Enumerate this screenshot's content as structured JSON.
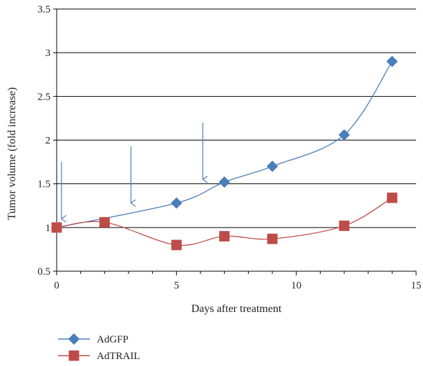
{
  "chart_data": {
    "type": "line",
    "xlabel": "Days after treatment",
    "ylabel": "Tumor volume (fold increase)",
    "xlim": [
      0,
      15
    ],
    "ylim": [
      0.5,
      3.5
    ],
    "x_ticks": [
      0,
      5,
      10,
      15
    ],
    "x_tick_labels": [
      "0",
      "5",
      "10",
      "15"
    ],
    "y_ticks": [
      0.5,
      1,
      1.5,
      2,
      2.5,
      3,
      3.5
    ],
    "y_tick_labels": [
      "0.5",
      "1",
      "1.5",
      "2",
      "2.5",
      "3",
      "3.5"
    ],
    "grid": "horizontal",
    "legend_position": "bottom-left",
    "series": [
      {
        "name": "AdGFP",
        "marker": "diamond",
        "color": "#4a7ebb",
        "x": [
          0,
          5,
          7,
          9,
          12,
          14
        ],
        "y": [
          1.0,
          1.28,
          1.52,
          1.7,
          2.06,
          2.9
        ]
      },
      {
        "name": "AdTRAIL",
        "marker": "square",
        "color": "#be4b48",
        "x": [
          0,
          2,
          5,
          7,
          9,
          12,
          14
        ],
        "y": [
          1.0,
          1.06,
          0.8,
          0.9,
          0.87,
          1.02,
          1.34
        ]
      }
    ],
    "annotations": [
      {
        "type": "arrow",
        "color": "#4a7ebb",
        "x": 0.2,
        "y_from": 1.75,
        "y_to": 1.1
      },
      {
        "type": "arrow",
        "color": "#4a7ebb",
        "x": 3.1,
        "y_from": 1.93,
        "y_to": 1.28
      },
      {
        "type": "arrow",
        "color": "#4a7ebb",
        "x": 6.1,
        "y_from": 2.2,
        "y_to": 1.55
      }
    ]
  }
}
